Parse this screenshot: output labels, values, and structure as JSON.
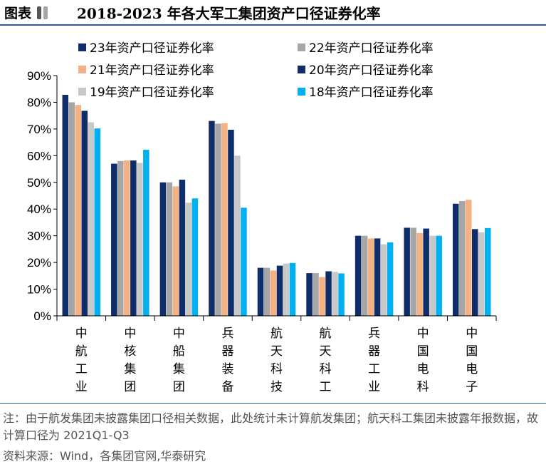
{
  "header": {
    "label": "图表",
    "title": "2018-2023 年各大军工集团资产口径证券化率",
    "mark_colors": [
      "#555555",
      "#a6a6a6"
    ]
  },
  "chart_data": {
    "type": "bar",
    "title": "2018-2023 年各大军工集团资产口径证券化率",
    "categories": [
      "中航工业",
      "中核集团",
      "中船集团",
      "兵器装备",
      "航天科技",
      "航天科工",
      "兵器工业",
      "中国电科",
      "中国电子"
    ],
    "series": [
      {
        "name": "23年资产口径证券化率",
        "color": "#0f2d69",
        "values": [
          0.828,
          0.57,
          0.5,
          0.73,
          0.18,
          0.16,
          0.3,
          0.33,
          0.42
        ]
      },
      {
        "name": "22年资产口径证券化率",
        "color": "#a6a6a6",
        "values": [
          0.8,
          0.58,
          0.5,
          0.72,
          0.18,
          0.16,
          0.3,
          0.33,
          0.43
        ]
      },
      {
        "name": "21年资产口径证券化率",
        "color": "#f4b183",
        "values": [
          0.79,
          0.582,
          0.485,
          0.722,
          0.17,
          0.145,
          0.29,
          0.31,
          0.435
        ]
      },
      {
        "name": "20年资产口径证券化率",
        "color": "#0f2d69",
        "values": [
          0.768,
          0.582,
          0.51,
          0.697,
          0.188,
          0.167,
          0.29,
          0.327,
          0.325
        ]
      },
      {
        "name": "19年资产口径证券化率",
        "color": "#c8c8c8",
        "values": [
          0.725,
          0.573,
          0.424,
          0.6,
          0.196,
          0.165,
          0.268,
          0.3,
          0.313
        ]
      },
      {
        "name": "18年资产口径证券化率",
        "color": "#00b0f0",
        "values": [
          0.702,
          0.622,
          0.44,
          0.405,
          0.198,
          0.159,
          0.275,
          0.3,
          0.329
        ]
      }
    ],
    "y_ticks": [
      "0%",
      "10%",
      "20%",
      "30%",
      "40%",
      "50%",
      "60%",
      "70%",
      "80%",
      "90%"
    ],
    "ylim": [
      0,
      0.9
    ],
    "grid": false,
    "legend_position": "top"
  },
  "notes": {
    "note1": "注：由于航发集团未披露集团口径相关数据，此处统计未计算航发集团；航天科工集团未披露年报数据，故计算口径为 2021Q1-Q3",
    "note2": "资料来源：Wind，各集团官网,华泰研究"
  }
}
